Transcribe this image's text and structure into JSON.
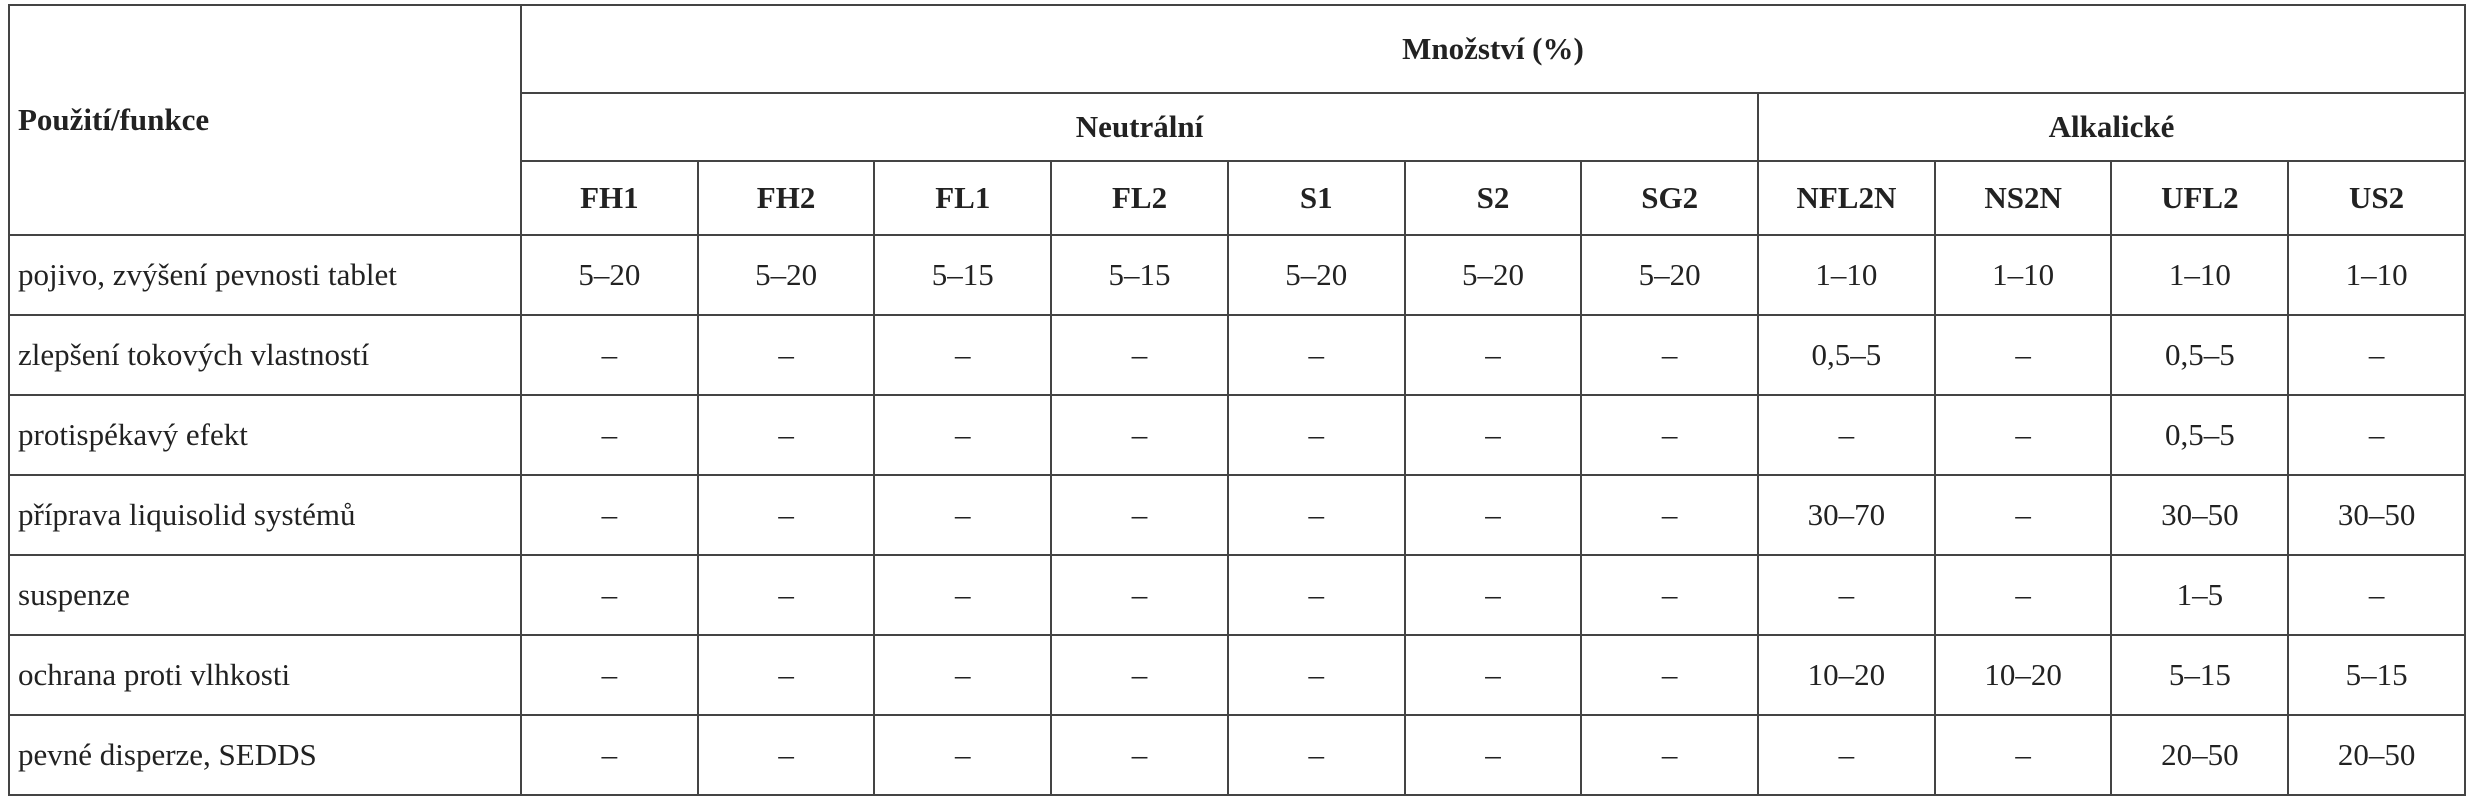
{
  "table": {
    "title": "Množství (%)",
    "row_header": "Použití/funkce",
    "groups": [
      {
        "name": "Neutrální",
        "columns": [
          "FH1",
          "FH2",
          "FL1",
          "FL2",
          "S1",
          "S2",
          "SG2"
        ]
      },
      {
        "name": "Alkalické",
        "columns": [
          "NFL2N",
          "NS2N",
          "UFL2",
          "US2"
        ]
      }
    ],
    "rows": [
      {
        "label": "pojivo, zvýšení pevnosti tablet",
        "cells": [
          "5–20",
          "5–20",
          "5–15",
          "5–15",
          "5–20",
          "5–20",
          "5–20",
          "1–10",
          "1–10",
          "1–10",
          "1–10"
        ]
      },
      {
        "label": "zlepšení tokových vlastností",
        "cells": [
          "–",
          "–",
          "–",
          "–",
          "–",
          "–",
          "–",
          "0,5–5",
          "–",
          "0,5–5",
          "–"
        ]
      },
      {
        "label": "protispékavý efekt",
        "cells": [
          "–",
          "–",
          "–",
          "–",
          "–",
          "–",
          "–",
          "–",
          "–",
          "0,5–5",
          "–"
        ]
      },
      {
        "label": "příprava liquisolid systémů",
        "cells": [
          "–",
          "–",
          "–",
          "–",
          "–",
          "–",
          "–",
          "30–70",
          "–",
          "30–50",
          "30–50"
        ]
      },
      {
        "label": "suspenze",
        "cells": [
          "–",
          "–",
          "–",
          "–",
          "–",
          "–",
          "–",
          "–",
          "–",
          "1–5",
          "–"
        ]
      },
      {
        "label": "ochrana proti vlhkosti",
        "cells": [
          "–",
          "–",
          "–",
          "–",
          "–",
          "–",
          "–",
          "10–20",
          "10–20",
          "5–15",
          "5–15"
        ]
      },
      {
        "label": "pevné disperze, SEDDS",
        "cells": [
          "–",
          "–",
          "–",
          "–",
          "–",
          "–",
          "–",
          "–",
          "–",
          "20–50",
          "20–50"
        ]
      }
    ]
  }
}
